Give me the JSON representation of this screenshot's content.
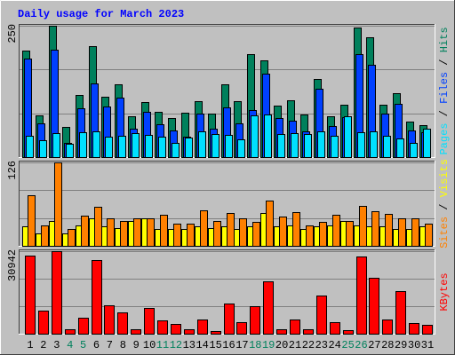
{
  "chart_data": [
    {
      "type": "bar",
      "title": "Daily usage for March 2023",
      "ylim": [
        0,
        250
      ],
      "yticks": [
        250
      ],
      "legend_separator": " / ",
      "series": [
        {
          "name": "Hits",
          "color": "#00805c",
          "values": [
            202,
            80,
            250,
            57,
            118,
            211,
            115,
            139,
            78,
            105,
            86,
            74,
            84,
            106,
            83,
            139,
            106,
            196,
            184,
            98,
            108,
            81,
            149,
            78,
            100,
            247,
            228,
            100,
            122,
            68,
            61
          ]
        },
        {
          "name": "Files",
          "color": "#0040ff",
          "values": [
            187,
            64,
            204,
            27,
            93,
            140,
            96,
            113,
            54,
            86,
            62,
            51,
            39,
            83,
            54,
            95,
            64,
            90,
            159,
            74,
            69,
            49,
            130,
            59,
            76,
            196,
            176,
            83,
            101,
            51,
            47
          ]
        },
        {
          "name": "Pages",
          "color": "#00e0ff",
          "values": [
            41,
            32,
            46,
            25,
            47,
            49,
            39,
            41,
            46,
            42,
            39,
            27,
            37,
            49,
            44,
            42,
            34,
            79,
            81,
            44,
            46,
            44,
            49,
            41,
            78,
            47,
            49,
            41,
            35,
            27,
            54
          ]
        }
      ]
    },
    {
      "type": "bar",
      "ylim": [
        0,
        126
      ],
      "yticks": [
        126
      ],
      "legend_separator": " / ",
      "series": [
        {
          "name": "Visits",
          "color": "#ffff00",
          "values": [
            30,
            19,
            38,
            19,
            31,
            41,
            29,
            27,
            38,
            41,
            25,
            26,
            25,
            29,
            27,
            30,
            25,
            30,
            49,
            29,
            31,
            25,
            29,
            31,
            37,
            31,
            30,
            30,
            26,
            26,
            30
          ]
        },
        {
          "name": "Sites",
          "color": "#ff8000",
          "values": [
            77,
            31,
            126,
            25,
            45,
            59,
            42,
            37,
            41,
            42,
            47,
            34,
            33,
            53,
            38,
            49,
            41,
            36,
            68,
            44,
            51,
            31,
            36,
            47,
            37,
            60,
            52,
            48,
            41,
            41,
            34
          ]
        }
      ]
    },
    {
      "type": "bar",
      "ylim": [
        0,
        30942
      ],
      "yticks": [
        30942
      ],
      "categories": [
        "1",
        "2",
        "3",
        "4",
        "5",
        "6",
        "7",
        "8",
        "9",
        "10",
        "11",
        "12",
        "13",
        "14",
        "15",
        "16",
        "17",
        "18",
        "19",
        "20",
        "21",
        "22",
        "23",
        "24",
        "25",
        "26",
        "27",
        "28",
        "29",
        "30",
        "31"
      ],
      "category_colors": [
        "#000000",
        "#000000",
        "#000000",
        "#00805c",
        "#00805c",
        "#000000",
        "#000000",
        "#000000",
        "#000000",
        "#000000",
        "#00805c",
        "#00805c",
        "#000000",
        "#000000",
        "#000000",
        "#000000",
        "#000000",
        "#00805c",
        "#00805c",
        "#000000",
        "#000000",
        "#000000",
        "#000000",
        "#000000",
        "#00805c",
        "#00805c",
        "#000000",
        "#000000",
        "#000000",
        "#000000",
        "#000000"
      ],
      "series": [
        {
          "name": "KBytes",
          "color": "#ff0000",
          "values": [
            29260,
            8745,
            30942,
            1682,
            6054,
            27579,
            10762,
            8072,
            1682,
            9753,
            5045,
            3700,
            1682,
            5381,
            1009,
            11435,
            4372,
            10426,
            19507,
            1682,
            5381,
            1682,
            14462,
            4372,
            1345,
            28924,
            20852,
            5381,
            15807,
            4036,
            3363
          ]
        }
      ]
    }
  ]
}
